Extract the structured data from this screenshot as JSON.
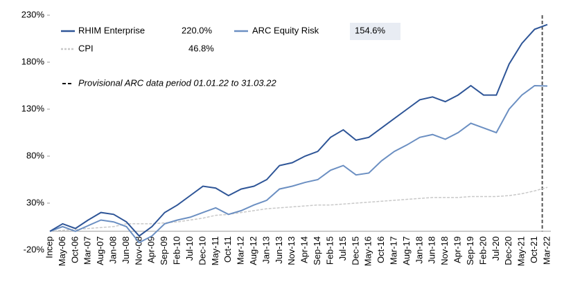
{
  "chart_data": {
    "type": "line",
    "categories": [
      "Incep",
      "May-06",
      "Oct-06",
      "Mar-07",
      "Aug-07",
      "Jan-08",
      "Jun-08",
      "Nov-08",
      "Apr-09",
      "Sep-09",
      "Feb-10",
      "Jul-10",
      "Dec-10",
      "May-11",
      "Oct-11",
      "Mar-12",
      "Aug-12",
      "Jan-13",
      "Jun-13",
      "Nov-13",
      "Apr-14",
      "Sep-14",
      "Feb-15",
      "Jul-15",
      "Dec-15",
      "May-16",
      "Oct-16",
      "Mar-17",
      "Aug-17",
      "Jan-18",
      "Jun-18",
      "Nov-18",
      "Apr-19",
      "Sep-19",
      "Feb-20",
      "Jul-20",
      "Dec-20",
      "May-21",
      "Oct-21",
      "Mar-22"
    ],
    "series": [
      {
        "name": "RHIM Enterprise",
        "color": "#2e5597",
        "value_label": "220.0%",
        "values": [
          0,
          8,
          3,
          12,
          20,
          18,
          10,
          -5,
          5,
          20,
          28,
          38,
          48,
          46,
          38,
          45,
          48,
          55,
          70,
          73,
          80,
          85,
          100,
          108,
          97,
          100,
          110,
          120,
          130,
          140,
          143,
          138,
          145,
          155,
          145,
          145,
          178,
          200,
          215,
          220
        ]
      },
      {
        "name": "ARC Equity Risk",
        "color": "#6b8fc2",
        "value_label": "154.6%",
        "values": [
          0,
          5,
          0,
          6,
          12,
          10,
          5,
          -12,
          -5,
          8,
          12,
          15,
          20,
          25,
          18,
          22,
          28,
          33,
          45,
          48,
          52,
          55,
          65,
          70,
          60,
          62,
          75,
          85,
          92,
          100,
          103,
          98,
          105,
          115,
          110,
          105,
          130,
          145,
          155,
          154.6
        ]
      },
      {
        "name": "CPI",
        "color": "#c8c8c8",
        "value_label": "46.8%",
        "values": [
          0,
          1,
          2,
          3,
          4,
          5,
          8,
          8,
          8,
          9,
          10,
          12,
          14,
          17,
          18,
          20,
          22,
          24,
          25,
          26,
          27,
          28,
          28,
          29,
          30,
          31,
          32,
          33,
          34,
          35,
          36,
          36,
          36,
          37,
          37,
          37,
          38,
          40,
          43,
          46.8
        ]
      }
    ],
    "annotation": "Provisional ARC data period 01.01.22 to 31.03.22",
    "ylim": [
      -20,
      230
    ],
    "yticks": [
      {
        "value": -20,
        "label": "-20%"
      },
      {
        "value": 30,
        "label": "30%"
      },
      {
        "value": 80,
        "label": "80%"
      },
      {
        "value": 130,
        "label": "130%"
      },
      {
        "value": 180,
        "label": "180%"
      },
      {
        "value": 230,
        "label": "230%"
      }
    ]
  }
}
